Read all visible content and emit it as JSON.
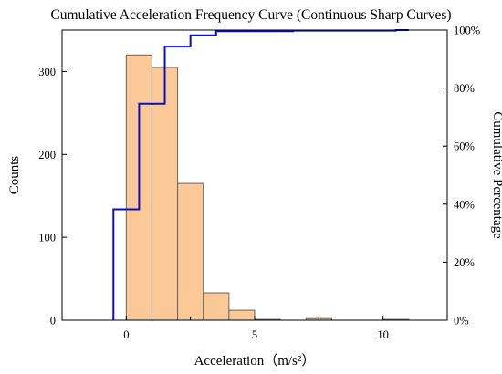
{
  "chart_data": {
    "type": "bar",
    "title": "Cumulative Acceleration Frequency Curve (Continuous Sharp Curves)",
    "xlabel": "Acceleration（m/s²）",
    "ylabel": "Counts",
    "y2label": "Cumulative Percentage",
    "xlim": [
      -2.5,
      12.5
    ],
    "ylim": [
      0,
      350
    ],
    "y2lim": [
      0,
      100
    ],
    "xticks": [
      {
        "v": 0,
        "label": "0"
      },
      {
        "v": 5,
        "label": "5"
      },
      {
        "v": 10,
        "label": "10"
      }
    ],
    "yticks": [
      {
        "v": 0,
        "label": "0"
      },
      {
        "v": 100,
        "label": "100"
      },
      {
        "v": 200,
        "label": "200"
      },
      {
        "v": 300,
        "label": "300"
      }
    ],
    "y2ticks": [
      {
        "v": 0,
        "label": "0%"
      },
      {
        "v": 20,
        "label": "20%"
      },
      {
        "v": 40,
        "label": "40%"
      },
      {
        "v": 60,
        "label": "60%"
      },
      {
        "v": 80,
        "label": "80%"
      },
      {
        "v": 100,
        "label": "100%"
      }
    ],
    "histogram": {
      "bin_edges": [
        0,
        1,
        2,
        3,
        4,
        5,
        6,
        7,
        8,
        9,
        10,
        11
      ],
      "counts": [
        320,
        305,
        165,
        33,
        12,
        1,
        0,
        2,
        0,
        0,
        1
      ],
      "color": "#fbc897",
      "edge_color": "#666666"
    },
    "cumulative_line": {
      "color": "#0a10c8",
      "steps": [
        {
          "x": -0.5,
          "y": 38.2
        },
        {
          "x": 0.5,
          "y": 74.6
        },
        {
          "x": 1.5,
          "y": 94.3
        },
        {
          "x": 2.5,
          "y": 98.2
        },
        {
          "x": 3.5,
          "y": 99.6
        },
        {
          "x": 6.5,
          "y": 99.8
        },
        {
          "x": 10.5,
          "y": 100
        }
      ],
      "x_end": 11
    },
    "grid": false,
    "legend": "none"
  }
}
